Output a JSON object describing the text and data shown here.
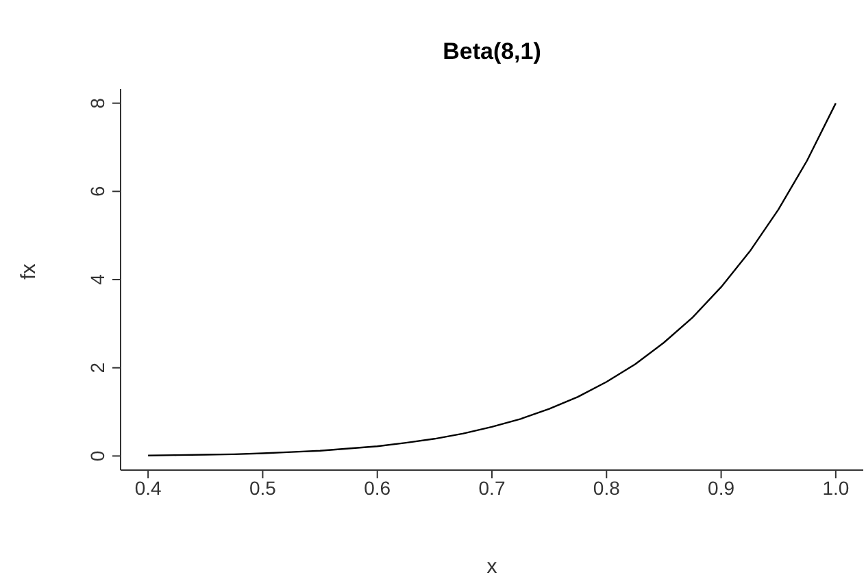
{
  "chart_data": {
    "type": "line",
    "title": "Beta(8,1)",
    "xlabel": "x",
    "ylabel": "fx",
    "x": [
      0.4,
      0.425,
      0.45,
      0.475,
      0.5,
      0.525,
      0.55,
      0.575,
      0.6,
      0.625,
      0.65,
      0.675,
      0.7,
      0.725,
      0.75,
      0.775,
      0.8,
      0.825,
      0.85,
      0.875,
      0.9,
      0.925,
      0.95,
      0.975,
      1.0
    ],
    "series": [
      {
        "color": "#000000",
        "values": [
          0.01,
          0.02,
          0.03,
          0.04,
          0.06,
          0.09,
          0.12,
          0.17,
          0.22,
          0.3,
          0.39,
          0.51,
          0.66,
          0.84,
          1.07,
          1.34,
          1.68,
          2.08,
          2.57,
          3.14,
          3.83,
          4.64,
          5.59,
          6.7,
          8.0
        ]
      }
    ],
    "xlim": [
      0.376,
      1.024
    ],
    "ylim": [
      -0.32,
      8.32
    ],
    "xticks": [
      0.4,
      0.5,
      0.6,
      0.7,
      0.8,
      0.9,
      {
        "value": 1.0,
        "label": "1.0"
      }
    ],
    "yticks": [
      0,
      2,
      4,
      6,
      8
    ],
    "grid": false,
    "legend": false,
    "marker": "none",
    "line_style": "solid"
  }
}
